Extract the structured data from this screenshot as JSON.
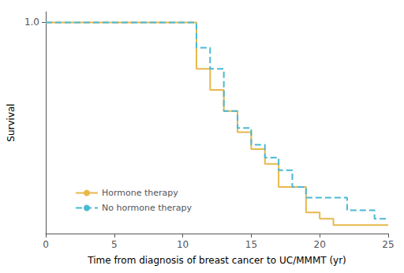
{
  "chart_data": {
    "type": "step",
    "xlabel": "Time from diagnosis of breast cancer to UC/MMMT (yr)",
    "ylabel": "Survival",
    "xlim": [
      0,
      25
    ],
    "ylim": [
      0,
      1.05
    ],
    "xticks": [
      0,
      5,
      10,
      15,
      20,
      25
    ],
    "yticks": [
      {
        "value": 1.0,
        "label": "1.0"
      }
    ],
    "grid": false,
    "legend": "lower left",
    "series": [
      {
        "name": "Hormone therapy",
        "color": "#E8B84B",
        "line_style": "solid",
        "x": [
          0,
          11,
          11,
          12,
          12,
          13,
          13,
          14,
          14,
          15,
          15,
          16,
          16,
          17,
          17,
          19,
          19,
          20,
          20,
          21,
          21,
          25
        ],
        "values": [
          1.0,
          1.0,
          0.78,
          0.78,
          0.68,
          0.68,
          0.58,
          0.58,
          0.48,
          0.48,
          0.4,
          0.4,
          0.33,
          0.33,
          0.22,
          0.22,
          0.1,
          0.1,
          0.07,
          0.07,
          0.04,
          0.04
        ]
      },
      {
        "name": "No hormone therapy",
        "color": "#4BB8D4",
        "line_style": "dashed",
        "x": [
          0,
          11,
          11,
          12,
          12,
          13,
          13,
          14,
          14,
          15,
          15,
          16,
          16,
          17,
          17,
          18,
          18,
          19,
          19,
          22,
          22,
          24,
          24,
          25
        ],
        "values": [
          1.0,
          1.0,
          0.88,
          0.88,
          0.78,
          0.78,
          0.58,
          0.58,
          0.5,
          0.5,
          0.42,
          0.42,
          0.36,
          0.36,
          0.3,
          0.3,
          0.22,
          0.22,
          0.17,
          0.17,
          0.11,
          0.11,
          0.07,
          0.07
        ]
      }
    ]
  }
}
